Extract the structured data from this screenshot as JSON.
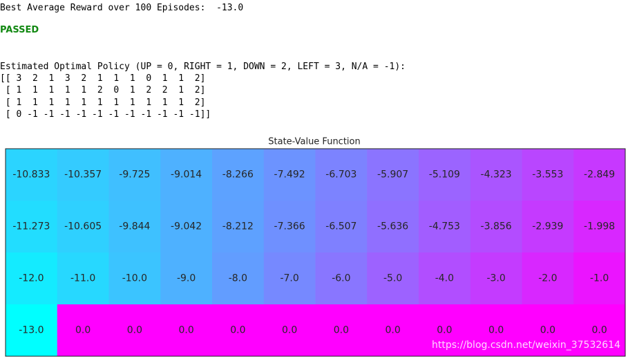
{
  "output": {
    "reward_line": "Best Average Reward over 100 Episodes:  -13.0",
    "status": "PASSED",
    "policy_title": "Estimated Optimal Policy (UP = 0, RIGHT = 1, DOWN = 2, LEFT = 3, N/A = -1):",
    "policy_lines": [
      "[[ 3  2  1  3  2  1  1  1  0  1  1  2]",
      " [ 1  1  1  1  1  2  0  1  2  2  1  2]",
      " [ 1  1  1  1  1  1  1  1  1  1  1  2]",
      " [ 0 -1 -1 -1 -1 -1 -1 -1 -1 -1 -1 -1]]"
    ]
  },
  "chart_data": {
    "type": "heatmap",
    "title": "State-Value Function",
    "colormap": "cool",
    "clim": [
      -13,
      0
    ],
    "values": [
      [
        -10.833,
        -10.357,
        -9.725,
        -9.014,
        -8.266,
        -7.492,
        -6.703,
        -5.907,
        -5.109,
        -4.323,
        -3.553,
        -2.849
      ],
      [
        -11.273,
        -10.605,
        -9.844,
        -9.042,
        -8.212,
        -7.366,
        -6.507,
        -5.636,
        -4.753,
        -3.856,
        -2.939,
        -1.998
      ],
      [
        -12,
        -11,
        -10,
        -9,
        -8,
        -7,
        -6,
        -5,
        -4,
        -3,
        -2,
        -1
      ],
      [
        -13,
        0,
        0,
        0,
        0,
        0,
        0,
        0,
        0,
        0,
        0,
        0
      ]
    ],
    "value_labels": [
      [
        "-10.833",
        "-10.357",
        "-9.725",
        "-9.014",
        "-8.266",
        "-7.492",
        "-6.703",
        "-5.907",
        "-5.109",
        "-4.323",
        "-3.553",
        "-2.849"
      ],
      [
        "-11.273",
        "-10.605",
        "-9.844",
        "-9.042",
        "-8.212",
        "-7.366",
        "-6.507",
        "-5.636",
        "-4.753",
        "-3.856",
        "-2.939",
        "-1.998"
      ],
      [
        "-12.0",
        "-11.0",
        "-10.0",
        "-9.0",
        "-8.0",
        "-7.0",
        "-6.0",
        "-5.0",
        "-4.0",
        "-3.0",
        "-2.0",
        "-1.0"
      ],
      [
        "-13.0",
        "0.0",
        "0.0",
        "0.0",
        "0.0",
        "0.0",
        "0.0",
        "0.0",
        "0.0",
        "0.0",
        "0.0",
        "0.0"
      ]
    ],
    "watermark": "https://blog.csdn.net/weixin_37532614"
  }
}
